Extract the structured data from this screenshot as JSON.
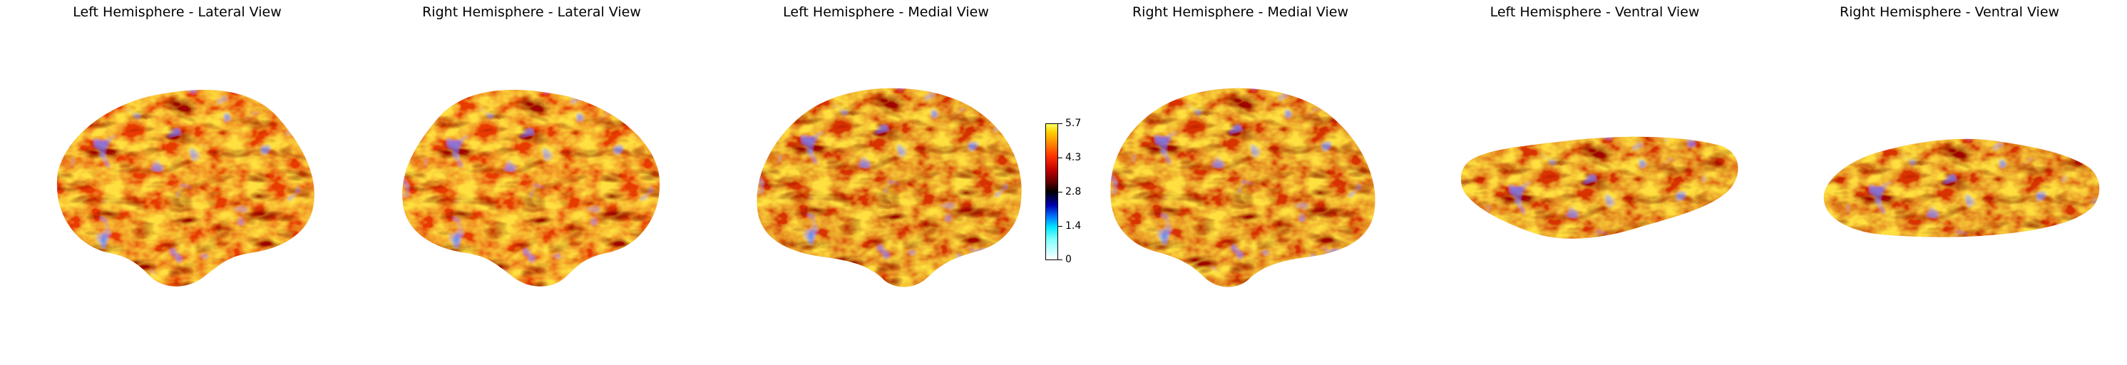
{
  "panels": [
    {
      "title": "Left Hemisphere - Lateral View"
    },
    {
      "title": "Right Hemisphere - Lateral View"
    },
    {
      "title": "Left Hemisphere - Medial View"
    },
    {
      "title": "Right Hemisphere - Medial View"
    },
    {
      "title": "Left Hemisphere - Ventral View"
    },
    {
      "title": "Right Hemisphere - Ventral View"
    }
  ],
  "colorbar": {
    "ticks": [
      "5.7",
      "4.3",
      "2.8",
      "1.4",
      "0"
    ],
    "colormap": [
      "#ffffff",
      "#00e5ff",
      "#0000b0",
      "#000000",
      "#c00000",
      "#ff8a00",
      "#ffff60"
    ]
  }
}
